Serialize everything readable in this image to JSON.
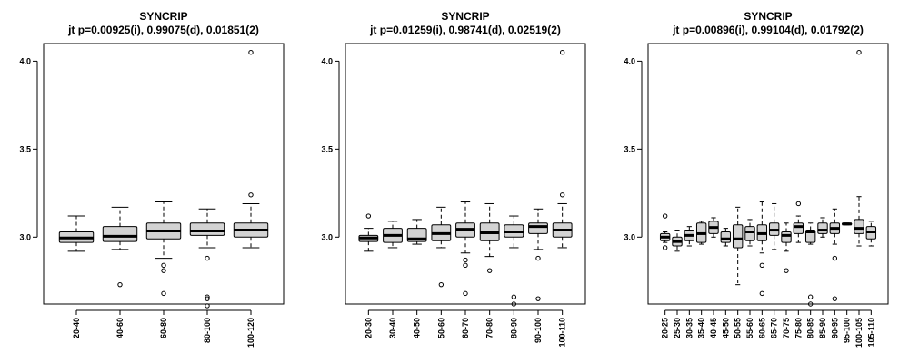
{
  "chart_data": [
    {
      "type": "boxplot",
      "title": "SYNCRIP",
      "subtitle": "jt p=0.00925(i), 0.99075(d), 0.01851(2)",
      "xlabel": "",
      "ylabel": "",
      "ylim": [
        2.62,
        4.1
      ],
      "yticks": [
        3.0,
        3.5,
        4.0
      ],
      "ytick_labels": [
        "3.0",
        "3.5",
        "4.0"
      ],
      "grid": false,
      "box_fill": "#d3d3d3",
      "categories": [
        "20-40",
        "40-60",
        "60-80",
        "80-100",
        "100-120"
      ],
      "boxes": [
        {
          "whislo": 2.92,
          "q1": 2.97,
          "med": 2.995,
          "q3": 3.03,
          "whishi": 3.12,
          "fliers": []
        },
        {
          "whislo": 2.93,
          "q1": 2.975,
          "med": 3.005,
          "q3": 3.06,
          "whishi": 3.17,
          "fliers": [
            2.73
          ]
        },
        {
          "whislo": 2.88,
          "q1": 2.99,
          "med": 3.035,
          "q3": 3.08,
          "whishi": 3.2,
          "fliers": [
            2.84,
            2.81,
            2.68
          ]
        },
        {
          "whislo": 2.94,
          "q1": 3.01,
          "med": 3.035,
          "q3": 3.08,
          "whishi": 3.16,
          "fliers": [
            2.88,
            2.66,
            2.65,
            2.61
          ]
        },
        {
          "whislo": 2.94,
          "q1": 3.0,
          "med": 3.04,
          "q3": 3.08,
          "whishi": 3.19,
          "fliers": [
            3.24,
            4.05
          ]
        }
      ]
    },
    {
      "type": "boxplot",
      "title": "SYNCRIP",
      "subtitle": "jt p=0.01259(i), 0.98741(d), 0.02519(2)",
      "xlabel": "",
      "ylabel": "",
      "ylim": [
        2.62,
        4.1
      ],
      "yticks": [
        3.0,
        3.5,
        4.0
      ],
      "ytick_labels": [
        "3.0",
        "3.5",
        "4.0"
      ],
      "grid": false,
      "box_fill": "#d3d3d3",
      "categories": [
        "20-30",
        "30-40",
        "40-50",
        "50-60",
        "60-70",
        "70-80",
        "80-90",
        "90-100",
        "100-110"
      ],
      "boxes": [
        {
          "whislo": 2.92,
          "q1": 2.975,
          "med": 2.995,
          "q3": 3.01,
          "whishi": 3.05,
          "fliers": [
            3.12
          ]
        },
        {
          "whislo": 2.94,
          "q1": 2.97,
          "med": 3.01,
          "q3": 3.05,
          "whishi": 3.09,
          "fliers": []
        },
        {
          "whislo": 2.96,
          "q1": 2.975,
          "med": 2.99,
          "q3": 3.05,
          "whishi": 3.1,
          "fliers": []
        },
        {
          "whislo": 2.94,
          "q1": 2.98,
          "med": 3.02,
          "q3": 3.07,
          "whishi": 3.17,
          "fliers": [
            2.73
          ]
        },
        {
          "whislo": 2.91,
          "q1": 3.0,
          "med": 3.045,
          "q3": 3.08,
          "whishi": 3.2,
          "fliers": [
            2.87,
            2.84,
            2.68
          ]
        },
        {
          "whislo": 2.89,
          "q1": 2.98,
          "med": 3.025,
          "q3": 3.08,
          "whishi": 3.19,
          "fliers": [
            2.81
          ]
        },
        {
          "whislo": 2.94,
          "q1": 3.0,
          "med": 3.03,
          "q3": 3.07,
          "whishi": 3.12,
          "fliers": [
            2.66,
            2.62
          ]
        },
        {
          "whislo": 2.93,
          "q1": 3.02,
          "med": 3.06,
          "q3": 3.08,
          "whishi": 3.16,
          "fliers": [
            2.88,
            2.65
          ]
        },
        {
          "whislo": 2.94,
          "q1": 3.0,
          "med": 3.04,
          "q3": 3.08,
          "whishi": 3.19,
          "fliers": [
            3.24,
            4.05
          ]
        }
      ]
    },
    {
      "type": "boxplot",
      "title": "SYNCRIP",
      "subtitle": "jt p=0.00896(i), 0.99104(d), 0.01792(2)",
      "xlabel": "",
      "ylabel": "",
      "ylim": [
        2.62,
        4.1
      ],
      "yticks": [
        3.0,
        3.5,
        4.0
      ],
      "ytick_labels": [
        "3.0",
        "3.5",
        "4.0"
      ],
      "grid": false,
      "box_fill": "#d3d3d3",
      "categories": [
        "20-25",
        "25-30",
        "30-35",
        "35-40",
        "40-45",
        "45-50",
        "50-55",
        "55-60",
        "60-65",
        "65-70",
        "70-75",
        "75-80",
        "80-85",
        "85-90",
        "90-95",
        "95-100",
        "100-105",
        "105-110"
      ],
      "boxes": [
        {
          "whislo": 2.97,
          "q1": 2.98,
          "med": 3.0,
          "q3": 3.02,
          "whishi": 3.03,
          "fliers": [
            3.12,
            2.94
          ]
        },
        {
          "whislo": 2.92,
          "q1": 2.95,
          "med": 2.975,
          "q3": 3.0,
          "whishi": 3.04,
          "fliers": []
        },
        {
          "whislo": 2.95,
          "q1": 2.98,
          "med": 3.01,
          "q3": 3.04,
          "whishi": 3.06,
          "fliers": []
        },
        {
          "whislo": 2.96,
          "q1": 2.97,
          "med": 3.02,
          "q3": 3.08,
          "whishi": 3.09,
          "fliers": []
        },
        {
          "whislo": 3.0,
          "q1": 3.02,
          "med": 3.055,
          "q3": 3.09,
          "whishi": 3.11,
          "fliers": []
        },
        {
          "whislo": 2.95,
          "q1": 2.97,
          "med": 2.99,
          "q3": 3.03,
          "whishi": 3.05,
          "fliers": []
        },
        {
          "whislo": 2.73,
          "q1": 2.94,
          "med": 2.99,
          "q3": 3.07,
          "whishi": 3.17,
          "fliers": []
        },
        {
          "whislo": 2.95,
          "q1": 2.98,
          "med": 3.03,
          "q3": 3.06,
          "whishi": 3.1,
          "fliers": []
        },
        {
          "whislo": 2.91,
          "q1": 2.98,
          "med": 3.02,
          "q3": 3.07,
          "whishi": 3.2,
          "fliers": [
            2.84,
            2.68
          ]
        },
        {
          "whislo": 2.93,
          "q1": 3.01,
          "med": 3.04,
          "q3": 3.08,
          "whishi": 3.19,
          "fliers": []
        },
        {
          "whislo": 2.92,
          "q1": 2.97,
          "med": 3.01,
          "q3": 3.03,
          "whishi": 3.08,
          "fliers": [
            2.81
          ]
        },
        {
          "whislo": 2.97,
          "q1": 3.02,
          "med": 3.06,
          "q3": 3.08,
          "whishi": 3.12,
          "fliers": [
            3.19
          ]
        },
        {
          "whislo": 2.96,
          "q1": 2.97,
          "med": 3.03,
          "q3": 3.04,
          "whishi": 3.08,
          "fliers": [
            2.66,
            2.62
          ]
        },
        {
          "whislo": 3.0,
          "q1": 3.02,
          "med": 3.04,
          "q3": 3.08,
          "whishi": 3.11,
          "fliers": []
        },
        {
          "whislo": 2.96,
          "q1": 3.02,
          "med": 3.05,
          "q3": 3.08,
          "whishi": 3.16,
          "fliers": [
            2.88,
            2.65
          ]
        },
        {
          "whislo": 3.07,
          "q1": 3.07,
          "med": 3.075,
          "q3": 3.08,
          "whishi": 3.08,
          "fliers": []
        },
        {
          "whislo": 2.95,
          "q1": 3.02,
          "med": 3.05,
          "q3": 3.1,
          "whishi": 3.23,
          "fliers": [
            4.05
          ]
        },
        {
          "whislo": 2.95,
          "q1": 2.99,
          "med": 3.03,
          "q3": 3.06,
          "whishi": 3.09,
          "fliers": []
        }
      ]
    }
  ]
}
